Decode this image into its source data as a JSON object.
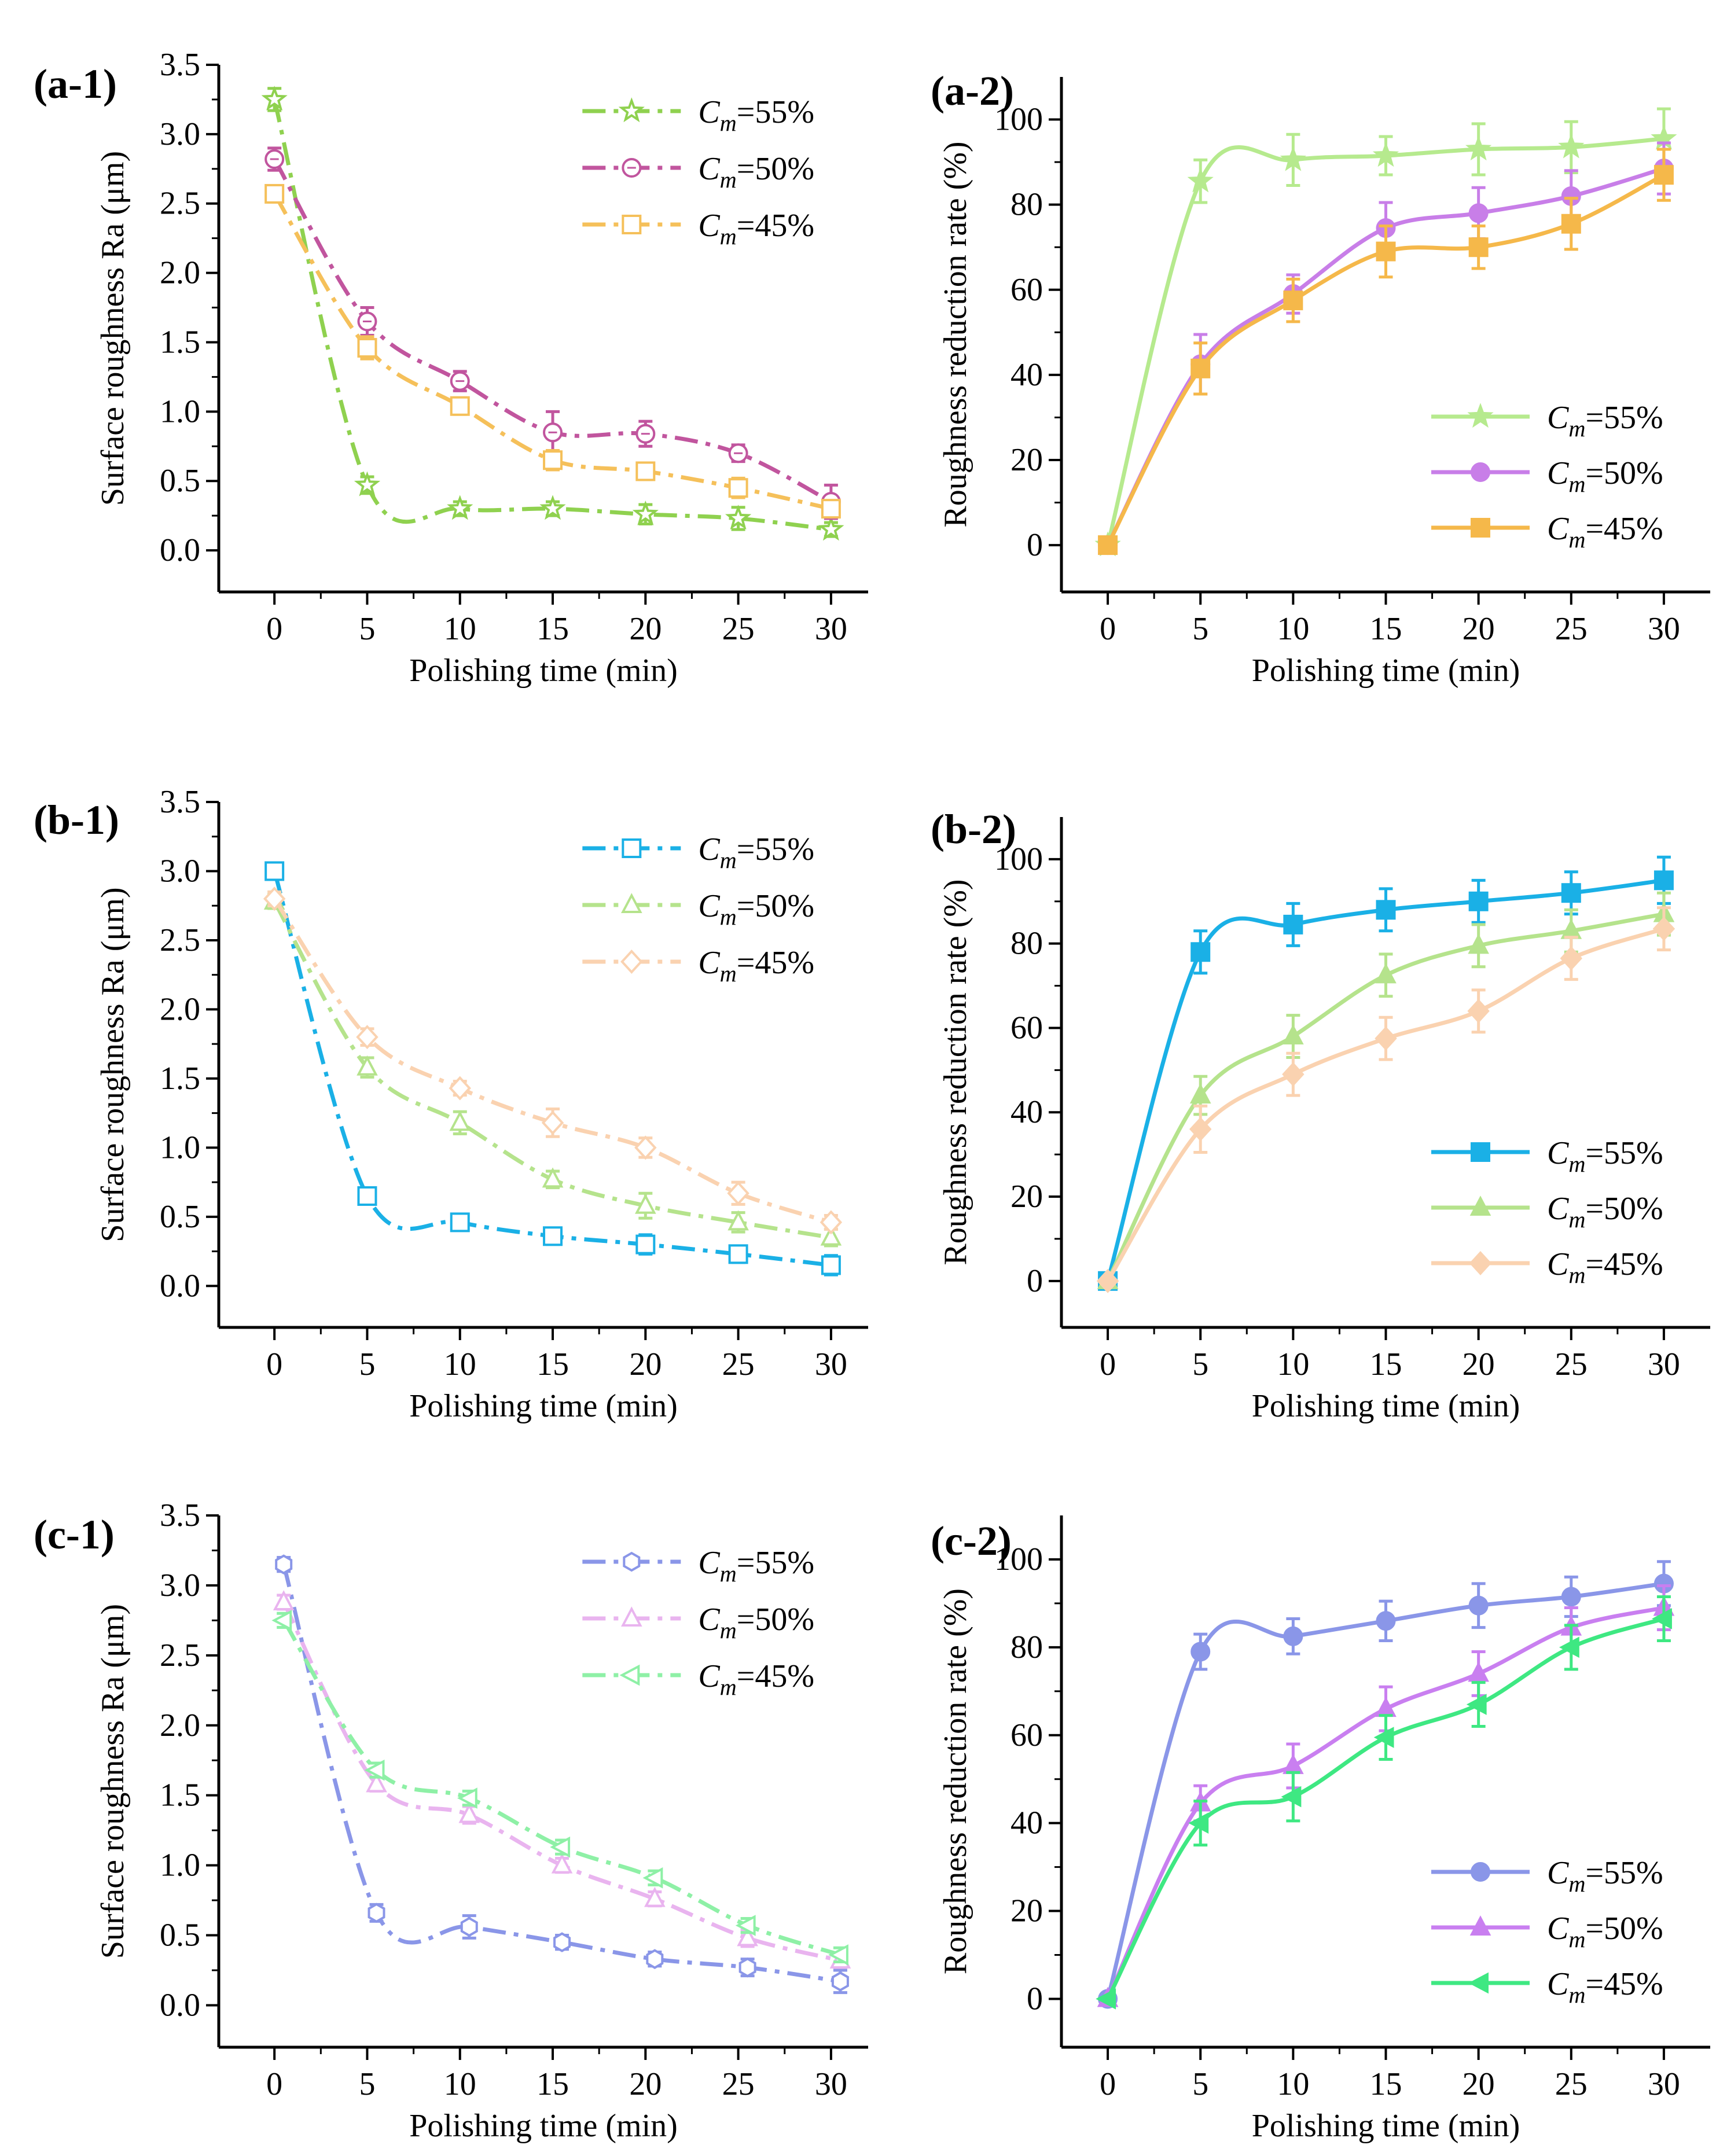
{
  "chart_data": [
    {
      "id": "a-1",
      "panel_label": "(a-1)",
      "type": "line",
      "xlabel": "Polishing time (min)",
      "ylabel": "Surface roughness Ra (μm)",
      "xlim": [
        -3,
        32
      ],
      "ylim": [
        -0.3,
        3.5
      ],
      "xticks": [
        0,
        5,
        10,
        15,
        20,
        25,
        30
      ],
      "xtick_labels": [
        "0",
        "5",
        "10",
        "15",
        "20",
        "25",
        "30"
      ],
      "yticks": [
        0,
        0.5,
        1.0,
        1.5,
        2.0,
        2.5,
        3.0,
        3.5
      ],
      "ytick_labels": [
        "0.0",
        "0.5",
        "1.0",
        "1.5",
        "2.0",
        "2.5",
        "3.0",
        "3.5"
      ],
      "legend_position": "top-right",
      "legend_style": "dashdot",
      "x": [
        0,
        5,
        10,
        15,
        20,
        25,
        30
      ],
      "series": [
        {
          "name": "C_m=55%",
          "legend_sub": "m",
          "legend_text": "=55%",
          "color": "#8fd14f",
          "marker": "star",
          "line": "dashdot",
          "values": [
            3.25,
            0.47,
            0.3,
            0.3,
            0.26,
            0.23,
            0.15
          ],
          "errors": [
            0.08,
            0.06,
            0.05,
            0.05,
            0.07,
            0.08,
            0.05
          ]
        },
        {
          "name": "C_m=50%",
          "legend_sub": "m",
          "legend_text": "=50%",
          "color": "#c1559e",
          "marker": "circle-dot",
          "line": "dashdot",
          "values": [
            2.82,
            1.65,
            1.22,
            0.85,
            0.84,
            0.7,
            0.35
          ],
          "errors": [
            0.08,
            0.1,
            0.07,
            0.15,
            0.09,
            0.06,
            0.12
          ]
        },
        {
          "name": "C_m=45%",
          "legend_sub": "m",
          "legend_text": "=45%",
          "color": "#f5c05a",
          "marker": "square",
          "line": "dashdot",
          "values": [
            2.57,
            1.46,
            1.04,
            0.65,
            0.57,
            0.45,
            0.3
          ],
          "errors": [
            0.06,
            0.08,
            0.06,
            0.07,
            0.06,
            0.07,
            0.05
          ]
        }
      ]
    },
    {
      "id": "a-2",
      "panel_label": "(a-2)",
      "type": "line",
      "xlabel": "Polishing time (min)",
      "ylabel": "Roughness reduction rate (%)",
      "xlim": [
        -2.5,
        32.5
      ],
      "ylim": [
        -11,
        110
      ],
      "xticks": [
        0,
        5,
        10,
        15,
        20,
        25,
        30
      ],
      "xtick_labels": [
        "0",
        "5",
        "10",
        "15",
        "20",
        "25",
        "30"
      ],
      "yticks": [
        0,
        20,
        40,
        60,
        80,
        100
      ],
      "ytick_labels": [
        "0",
        "20",
        "40",
        "60",
        "80",
        "100"
      ],
      "legend_position": "bottom-right",
      "legend_style": "solid",
      "x": [
        0,
        5,
        10,
        15,
        20,
        25,
        30
      ],
      "series": [
        {
          "name": "C_m=55%",
          "legend_sub": "m",
          "legend_text": "=55%",
          "color": "#b6ea8e",
          "marker": "star",
          "line": "solid",
          "values": [
            0,
            85.5,
            90.5,
            91.5,
            93.0,
            93.5,
            95.5
          ],
          "errors": [
            0,
            5,
            6,
            4.5,
            6,
            6,
            7
          ]
        },
        {
          "name": "C_m=50%",
          "legend_sub": "m",
          "legend_text": "=50%",
          "color": "#c87ee8",
          "marker": "circle",
          "line": "solid",
          "values": [
            0,
            42.5,
            59.0,
            74.5,
            78.0,
            82.0,
            88.5
          ],
          "errors": [
            0,
            7,
            4.5,
            6,
            6,
            6,
            6
          ]
        },
        {
          "name": "C_m=45%",
          "legend_sub": "m",
          "legend_text": "=45%",
          "color": "#f5b84a",
          "marker": "square",
          "line": "solid",
          "values": [
            0,
            41.5,
            57.5,
            69.0,
            70.0,
            75.5,
            87.0
          ],
          "errors": [
            0,
            6,
            5,
            6,
            5,
            6,
            6
          ]
        }
      ]
    },
    {
      "id": "b-1",
      "panel_label": "(b-1)",
      "type": "line",
      "xlabel": "Polishing time (min)",
      "ylabel": "Surface roughness Ra (μm)",
      "xlim": [
        -3,
        32
      ],
      "ylim": [
        -0.3,
        3.5
      ],
      "xticks": [
        0,
        5,
        10,
        15,
        20,
        25,
        30
      ],
      "xtick_labels": [
        "0",
        "5",
        "10",
        "15",
        "20",
        "25",
        "30"
      ],
      "yticks": [
        0,
        0.5,
        1.0,
        1.5,
        2.0,
        2.5,
        3.0,
        3.5
      ],
      "ytick_labels": [
        "0.0",
        "0.5",
        "1.0",
        "1.5",
        "2.0",
        "2.5",
        "3.0",
        "3.5"
      ],
      "legend_position": "top-right",
      "legend_style": "dashdot",
      "x": [
        0,
        5,
        10,
        15,
        20,
        25,
        30
      ],
      "series": [
        {
          "name": "C_m=55%",
          "legend_sub": "m",
          "legend_text": "=55%",
          "color": "#1ab0e6",
          "marker": "square",
          "line": "dashdot",
          "values": [
            3.0,
            0.65,
            0.46,
            0.36,
            0.3,
            0.23,
            0.15
          ],
          "errors": [
            0.03,
            0.05,
            0.04,
            0.06,
            0.07,
            0.06,
            0.07
          ]
        },
        {
          "name": "C_m=50%",
          "legend_sub": "m",
          "legend_text": "=50%",
          "color": "#b5e38c",
          "marker": "triangle",
          "line": "dashdot",
          "values": [
            2.78,
            1.58,
            1.18,
            0.77,
            0.58,
            0.46,
            0.35
          ],
          "errors": [
            0.05,
            0.07,
            0.08,
            0.06,
            0.09,
            0.07,
            0.06
          ]
        },
        {
          "name": "C_m=45%",
          "legend_sub": "m",
          "legend_text": "=45%",
          "color": "#fad2b0",
          "marker": "diamond",
          "line": "dashdot",
          "values": [
            2.8,
            1.8,
            1.43,
            1.18,
            1.0,
            0.67,
            0.46
          ],
          "errors": [
            0.05,
            0.06,
            0.05,
            0.1,
            0.07,
            0.08,
            0.05
          ]
        }
      ]
    },
    {
      "id": "b-2",
      "panel_label": "(b-2)",
      "type": "line",
      "xlabel": "Polishing time (min)",
      "ylabel": "Roughness reduction rate (%)",
      "xlim": [
        -2.5,
        32.5
      ],
      "ylim": [
        -11,
        110
      ],
      "xticks": [
        0,
        5,
        10,
        15,
        20,
        25,
        30
      ],
      "xtick_labels": [
        "0",
        "5",
        "10",
        "15",
        "20",
        "25",
        "30"
      ],
      "yticks": [
        0,
        20,
        40,
        60,
        80,
        100
      ],
      "ytick_labels": [
        "0",
        "20",
        "40",
        "60",
        "80",
        "100"
      ],
      "legend_position": "bottom-right",
      "legend_style": "solid",
      "x": [
        0,
        5,
        10,
        15,
        20,
        25,
        30
      ],
      "series": [
        {
          "name": "C_m=55%",
          "legend_sub": "m",
          "legend_text": "=55%",
          "color": "#1ab0e6",
          "marker": "square",
          "line": "solid",
          "values": [
            0,
            78.0,
            84.5,
            88.0,
            90.0,
            92.0,
            95.0
          ],
          "errors": [
            0,
            5,
            5,
            5,
            5,
            5,
            5.5
          ]
        },
        {
          "name": "C_m=50%",
          "legend_sub": "m",
          "legend_text": "=50%",
          "color": "#b5e38c",
          "marker": "triangle",
          "line": "solid",
          "values": [
            0,
            44.0,
            58.0,
            72.5,
            79.5,
            83.0,
            87.0
          ],
          "errors": [
            0,
            4.5,
            5,
            5,
            5,
            5,
            5
          ]
        },
        {
          "name": "C_m=45%",
          "legend_sub": "m",
          "legend_text": "=45%",
          "color": "#fad2b0",
          "marker": "diamond",
          "line": "solid",
          "values": [
            0,
            36.0,
            49.0,
            57.5,
            64.0,
            76.5,
            83.5
          ],
          "errors": [
            0,
            5.5,
            5,
            5,
            5,
            5,
            5
          ]
        }
      ]
    },
    {
      "id": "c-1",
      "panel_label": "(c-1)",
      "type": "line",
      "xlabel": "Polishing time (min)",
      "ylabel": "Surface roughness Ra (μm)",
      "xlim": [
        -3,
        32
      ],
      "ylim": [
        -0.3,
        3.5
      ],
      "xticks": [
        0,
        5,
        10,
        15,
        20,
        25,
        30
      ],
      "xtick_labels": [
        "0",
        "5",
        "10",
        "15",
        "20",
        "25",
        "30"
      ],
      "yticks": [
        0,
        0.5,
        1.0,
        1.5,
        2.0,
        2.5,
        3.0,
        3.5
      ],
      "ytick_labels": [
        "0.0",
        "0.5",
        "1.0",
        "1.5",
        "2.0",
        "2.5",
        "3.0",
        "3.5"
      ],
      "legend_position": "top-right",
      "legend_style": "dashdot",
      "x": [
        0.5,
        5.5,
        10.5,
        15.5,
        20.5,
        25.5,
        30.5
      ],
      "series": [
        {
          "name": "C_m=55%",
          "legend_sub": "m",
          "legend_text": "=55%",
          "color": "#8a96e8",
          "marker": "hexagon",
          "line": "dashdot",
          "values": [
            3.15,
            0.66,
            0.56,
            0.45,
            0.33,
            0.27,
            0.17
          ],
          "errors": [
            0.05,
            0.06,
            0.08,
            0.05,
            0.05,
            0.06,
            0.08
          ]
        },
        {
          "name": "C_m=50%",
          "legend_sub": "m",
          "legend_text": "=50%",
          "color": "#e9b4ef",
          "marker": "triangle",
          "line": "dashdot",
          "values": [
            2.88,
            1.58,
            1.36,
            1.0,
            0.76,
            0.48,
            0.32
          ],
          "errors": [
            0.05,
            0.05,
            0.06,
            0.05,
            0.05,
            0.06,
            0.05
          ]
        },
        {
          "name": "C_m=45%",
          "legend_sub": "m",
          "legend_text": "=45%",
          "color": "#8ef0a6",
          "marker": "triangle-left",
          "line": "dashdot",
          "values": [
            2.75,
            1.68,
            1.48,
            1.13,
            0.91,
            0.57,
            0.36
          ],
          "errors": [
            0.05,
            0.05,
            0.05,
            0.05,
            0.05,
            0.05,
            0.05
          ]
        }
      ]
    },
    {
      "id": "c-2",
      "panel_label": "(c-2)",
      "type": "line",
      "xlabel": "Polishing time (min)",
      "ylabel": "Roughness reduction rate (%)",
      "xlim": [
        -2.5,
        32.5
      ],
      "ylim": [
        -11,
        110
      ],
      "xticks": [
        0,
        5,
        10,
        15,
        20,
        25,
        30
      ],
      "xtick_labels": [
        "0",
        "5",
        "10",
        "15",
        "20",
        "25",
        "30"
      ],
      "yticks": [
        0,
        20,
        40,
        60,
        80,
        100
      ],
      "ytick_labels": [
        "0",
        "20",
        "40",
        "60",
        "80",
        "100"
      ],
      "legend_position": "bottom-right",
      "legend_style": "solid",
      "x": [
        0,
        5,
        10,
        15,
        20,
        25,
        30
      ],
      "series": [
        {
          "name": "C_m=55%",
          "legend_sub": "m",
          "legend_text": "=55%",
          "color": "#8a96e8",
          "marker": "circle",
          "line": "solid",
          "values": [
            0,
            79.0,
            82.5,
            86.0,
            89.5,
            91.5,
            94.5
          ],
          "errors": [
            0,
            4,
            4,
            4.5,
            5,
            4.5,
            5
          ]
        },
        {
          "name": "C_m=50%",
          "legend_sub": "m",
          "legend_text": "=50%",
          "color": "#c97ff0",
          "marker": "triangle",
          "line": "solid",
          "values": [
            0,
            44.5,
            53.0,
            66.0,
            74.0,
            84.5,
            89.0
          ],
          "errors": [
            0,
            4,
            5,
            5,
            5,
            4.5,
            5
          ]
        },
        {
          "name": "C_m=45%",
          "legend_sub": "m",
          "legend_text": "=45%",
          "color": "#3ee882",
          "marker": "triangle-left",
          "line": "solid",
          "values": [
            0,
            40.0,
            46.0,
            59.5,
            67.0,
            80.0,
            86.5
          ],
          "errors": [
            0,
            5,
            5.5,
            5,
            5,
            5,
            5
          ]
        }
      ]
    }
  ]
}
